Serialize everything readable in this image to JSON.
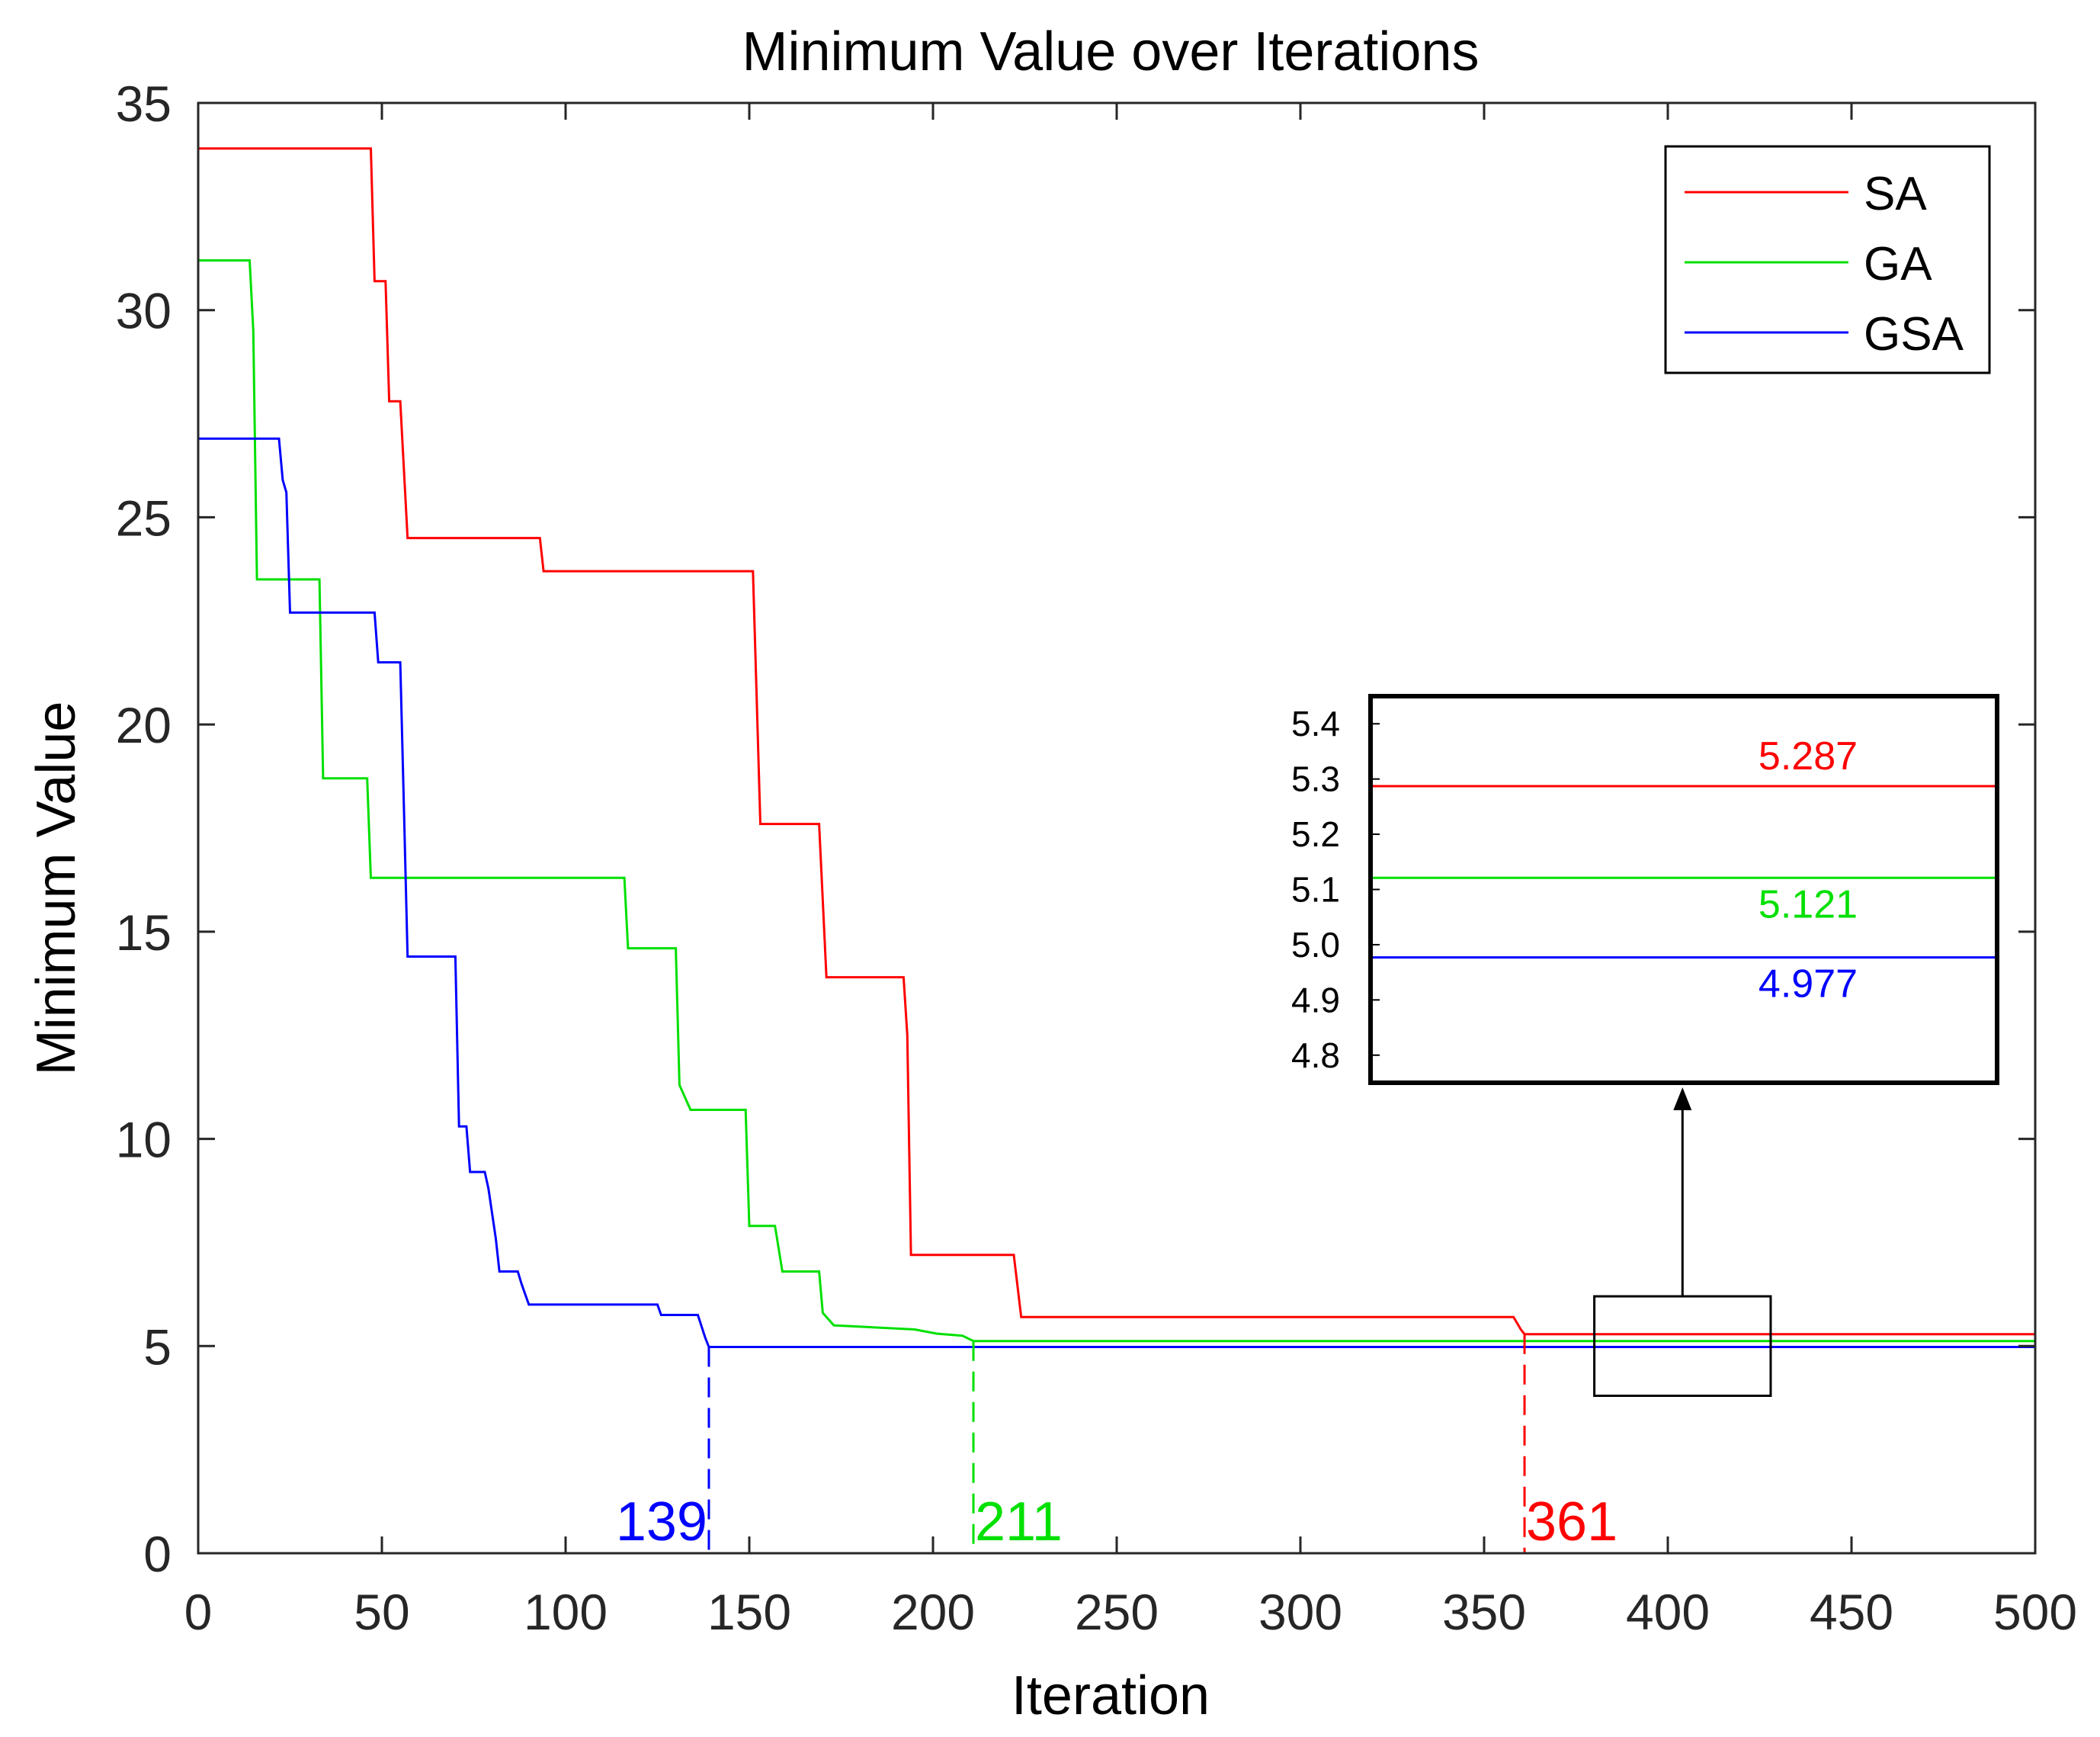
{
  "chart_data": {
    "type": "line",
    "title": "Minimum Value over Iterations",
    "xlabel": "Iteration",
    "ylabel": "Minimum Value",
    "xlim": [
      0,
      500
    ],
    "ylim": [
      0,
      35
    ],
    "xticks": [
      0,
      50,
      100,
      150,
      200,
      250,
      300,
      350,
      400,
      450,
      500
    ],
    "yticks": [
      0,
      5,
      10,
      15,
      20,
      25,
      30,
      35
    ],
    "grid": false,
    "legend": "top-right",
    "series": [
      {
        "name": "SA",
        "color": "#ff0000",
        "points": [
          [
            0,
            33.9
          ],
          [
            47,
            33.9
          ],
          [
            48,
            30.7
          ],
          [
            51,
            30.7
          ],
          [
            52,
            27.8
          ],
          [
            55,
            27.8
          ],
          [
            57,
            24.5
          ],
          [
            93,
            24.5
          ],
          [
            94,
            23.7
          ],
          [
            151,
            23.7
          ],
          [
            152,
            20.7
          ],
          [
            153,
            17.6
          ],
          [
            169,
            17.6
          ],
          [
            171,
            13.9
          ],
          [
            192,
            13.9
          ],
          [
            193,
            12.5
          ],
          [
            194,
            7.2
          ],
          [
            222,
            7.2
          ],
          [
            224,
            5.7
          ],
          [
            358,
            5.7
          ],
          [
            360,
            5.4
          ],
          [
            361,
            5.287
          ],
          [
            500,
            5.287
          ]
        ]
      },
      {
        "name": "GA",
        "color": "#00e000",
        "points": [
          [
            0,
            31.2
          ],
          [
            14,
            31.2
          ],
          [
            15,
            29.5
          ],
          [
            16,
            23.5
          ],
          [
            33,
            23.5
          ],
          [
            34,
            18.7
          ],
          [
            46,
            18.7
          ],
          [
            47,
            16.3
          ],
          [
            116,
            16.3
          ],
          [
            117,
            14.6
          ],
          [
            130,
            14.6
          ],
          [
            131,
            11.3
          ],
          [
            134,
            10.7
          ],
          [
            149,
            10.7
          ],
          [
            150,
            7.9
          ],
          [
            157,
            7.9
          ],
          [
            159,
            6.8
          ],
          [
            169,
            6.8
          ],
          [
            170,
            5.8
          ],
          [
            173,
            5.5
          ],
          [
            195,
            5.4
          ],
          [
            201,
            5.3
          ],
          [
            208,
            5.25
          ],
          [
            211,
            5.121
          ],
          [
            500,
            5.121
          ]
        ]
      },
      {
        "name": "GSA",
        "color": "#0000ff",
        "points": [
          [
            0,
            26.9
          ],
          [
            22,
            26.9
          ],
          [
            23,
            25.9
          ],
          [
            24,
            25.6
          ],
          [
            25,
            22.7
          ],
          [
            48,
            22.7
          ],
          [
            49,
            21.5
          ],
          [
            55,
            21.5
          ],
          [
            56,
            18.0
          ],
          [
            57,
            14.4
          ],
          [
            70,
            14.4
          ],
          [
            71,
            10.3
          ],
          [
            73,
            10.3
          ],
          [
            74,
            9.2
          ],
          [
            78,
            9.2
          ],
          [
            79,
            8.8
          ],
          [
            81,
            7.6
          ],
          [
            82,
            6.8
          ],
          [
            87,
            6.8
          ],
          [
            88,
            6.5
          ],
          [
            90,
            6.0
          ],
          [
            125,
            6.0
          ],
          [
            126,
            5.75
          ],
          [
            136,
            5.75
          ],
          [
            138,
            5.2
          ],
          [
            139,
            4.977
          ],
          [
            500,
            4.977
          ]
        ]
      }
    ],
    "convergence_markers": [
      {
        "series": "GSA",
        "x": 139,
        "y": 4.977,
        "label": "139",
        "color": "#0000ff"
      },
      {
        "series": "GA",
        "x": 211,
        "y": 5.121,
        "label": "211",
        "color": "#00e000"
      },
      {
        "series": "SA",
        "x": 361,
        "y": 5.287,
        "label": "361",
        "color": "#ff0000"
      }
    ],
    "zoom_region": {
      "xlim": [
        380,
        428
      ],
      "ylim": [
        3.8,
        6.2
      ]
    },
    "inset": {
      "ylim": [
        4.75,
        5.45
      ],
      "yticks": [
        "5.4",
        "5.3",
        "5.2",
        "5.1",
        "5.0",
        "4.9",
        "4.8"
      ],
      "lines": [
        {
          "series": "SA",
          "value": 5.287,
          "label": "5.287",
          "color": "#ff0000"
        },
        {
          "series": "GA",
          "value": 5.121,
          "label": "5.121",
          "color": "#00e000"
        },
        {
          "series": "GSA",
          "value": 4.977,
          "label": "4.977",
          "color": "#0000ff"
        }
      ]
    }
  }
}
